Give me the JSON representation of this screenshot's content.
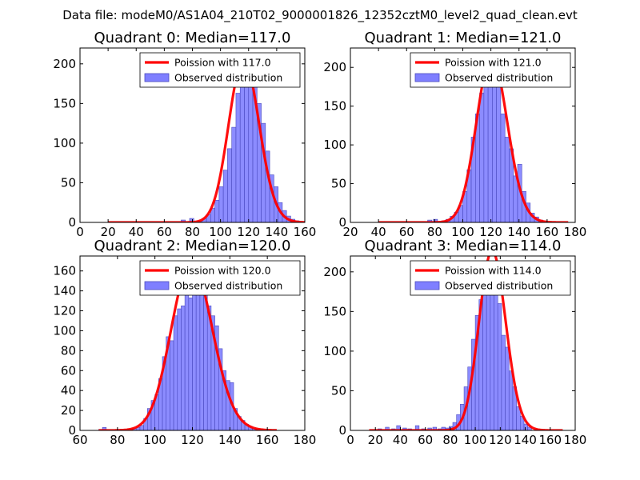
{
  "suptitle": "Data file: modeM0/AS1A04_210T02_9000001826_12352cztM0_level2_quad_clean.evt",
  "colors": {
    "poisson": "#ff0000",
    "bars": "#7f7fff",
    "bar_edge": "#4b4bbf",
    "axes": "#000000"
  },
  "chart_data": [
    {
      "type": "bar",
      "title": "Quadrant 0: Median=117.0",
      "median": 117.0,
      "xlim": [
        0,
        160
      ],
      "ylim": [
        0,
        220
      ],
      "xticks": [
        0,
        20,
        40,
        60,
        80,
        100,
        120,
        140,
        160
      ],
      "yticks": [
        0,
        50,
        100,
        150,
        200
      ],
      "legend": {
        "location": "top-right",
        "entries": [
          "Poission with 117.0",
          "Observed distribution"
        ]
      },
      "bin_width": 3,
      "bins": [
        [
          72,
          3
        ],
        [
          78,
          5
        ],
        [
          84,
          1
        ],
        [
          87,
          5
        ],
        [
          90,
          10
        ],
        [
          93,
          18
        ],
        [
          96,
          28
        ],
        [
          99,
          45
        ],
        [
          102,
          66
        ],
        [
          105,
          93
        ],
        [
          108,
          120
        ],
        [
          111,
          163
        ],
        [
          114,
          190
        ],
        [
          117,
          210
        ],
        [
          120,
          180
        ],
        [
          123,
          195
        ],
        [
          126,
          150
        ],
        [
          129,
          125
        ],
        [
          132,
          90
        ],
        [
          135,
          60
        ],
        [
          138,
          45
        ],
        [
          141,
          25
        ],
        [
          144,
          15
        ],
        [
          147,
          8
        ],
        [
          150,
          4
        ],
        [
          153,
          2
        ]
      ],
      "poisson": {
        "mu": 117.0,
        "x_range": [
          20,
          160
        ]
      }
    },
    {
      "type": "bar",
      "title": "Quadrant 1: Median=121.0",
      "median": 121.0,
      "xlim": [
        20,
        180
      ],
      "ylim": [
        0,
        225
      ],
      "xticks": [
        20,
        40,
        60,
        80,
        100,
        120,
        140,
        160,
        180
      ],
      "yticks": [
        0,
        50,
        100,
        150,
        200
      ],
      "legend": {
        "location": "top-right",
        "entries": [
          "Poission with 121.0",
          "Observed distribution"
        ]
      },
      "bin_width": 3,
      "bins": [
        [
          75,
          3
        ],
        [
          79,
          4
        ],
        [
          85,
          2
        ],
        [
          88,
          4
        ],
        [
          91,
          8
        ],
        [
          94,
          13
        ],
        [
          97,
          22
        ],
        [
          100,
          40
        ],
        [
          103,
          68
        ],
        [
          106,
          110
        ],
        [
          109,
          140
        ],
        [
          112,
          167
        ],
        [
          115,
          180
        ],
        [
          118,
          210
        ],
        [
          121,
          215
        ],
        [
          124,
          205
        ],
        [
          127,
          140
        ],
        [
          130,
          110
        ],
        [
          133,
          95
        ],
        [
          136,
          60
        ],
        [
          139,
          75
        ],
        [
          142,
          40
        ],
        [
          145,
          25
        ],
        [
          148,
          12
        ],
        [
          151,
          7
        ],
        [
          154,
          3
        ]
      ],
      "poisson": {
        "mu": 121.0,
        "x_range": [
          40,
          175
        ]
      }
    },
    {
      "type": "bar",
      "title": "Quadrant 2: Median=120.0",
      "median": 120.0,
      "xlim": [
        60,
        180
      ],
      "ylim": [
        0,
        175
      ],
      "xticks": [
        60,
        80,
        100,
        120,
        140,
        160,
        180
      ],
      "yticks": [
        0,
        20,
        40,
        60,
        80,
        100,
        120,
        140,
        160
      ],
      "legend": {
        "location": "top-right",
        "entries": [
          "Poission with 120.0",
          "Observed distribution"
        ]
      },
      "bin_width": 2,
      "bins": [
        [
          70,
          1
        ],
        [
          72,
          3
        ],
        [
          80,
          1
        ],
        [
          84,
          1
        ],
        [
          88,
          2
        ],
        [
          90,
          3
        ],
        [
          92,
          5
        ],
        [
          94,
          12
        ],
        [
          96,
          22
        ],
        [
          98,
          30
        ],
        [
          100,
          36
        ],
        [
          102,
          52
        ],
        [
          104,
          74
        ],
        [
          106,
          94
        ],
        [
          108,
          90
        ],
        [
          110,
          115
        ],
        [
          112,
          122
        ],
        [
          114,
          125
        ],
        [
          116,
          145
        ],
        [
          118,
          133
        ],
        [
          120,
          155
        ],
        [
          122,
          160
        ],
        [
          124,
          140
        ],
        [
          126,
          148
        ],
        [
          128,
          125
        ],
        [
          130,
          115
        ],
        [
          132,
          105
        ],
        [
          134,
          82
        ],
        [
          136,
          60
        ],
        [
          138,
          50
        ],
        [
          140,
          48
        ],
        [
          142,
          22
        ],
        [
          144,
          14
        ],
        [
          146,
          10
        ],
        [
          148,
          6
        ],
        [
          150,
          4
        ],
        [
          152,
          2
        ]
      ],
      "poisson": {
        "mu": 120.0,
        "x_range": [
          70,
          165
        ]
      }
    },
    {
      "type": "bar",
      "title": "Quadrant 3: Median=114.0",
      "median": 114.0,
      "xlim": [
        0,
        180
      ],
      "ylim": [
        0,
        220
      ],
      "xticks": [
        0,
        20,
        40,
        60,
        80,
        100,
        120,
        140,
        160,
        180
      ],
      "yticks": [
        0,
        50,
        100,
        150,
        200
      ],
      "legend": {
        "location": "top-right",
        "entries": [
          "Poission with 114.0",
          "Observed distribution"
        ]
      },
      "bin_width": 3,
      "bins": [
        [
          16,
          1
        ],
        [
          22,
          2
        ],
        [
          28,
          4
        ],
        [
          33,
          2
        ],
        [
          37,
          6
        ],
        [
          42,
          3
        ],
        [
          46,
          2
        ],
        [
          52,
          6
        ],
        [
          57,
          2
        ],
        [
          62,
          3
        ],
        [
          66,
          4
        ],
        [
          70,
          2
        ],
        [
          73,
          4
        ],
        [
          76,
          3
        ],
        [
          79,
          5
        ],
        [
          82,
          10
        ],
        [
          85,
          20
        ],
        [
          88,
          33
        ],
        [
          91,
          55
        ],
        [
          94,
          80
        ],
        [
          97,
          115
        ],
        [
          100,
          145
        ],
        [
          103,
          165
        ],
        [
          106,
          200
        ],
        [
          109,
          180
        ],
        [
          112,
          205
        ],
        [
          115,
          190
        ],
        [
          118,
          160
        ],
        [
          121,
          120
        ],
        [
          124,
          105
        ],
        [
          127,
          75
        ],
        [
          130,
          55
        ],
        [
          133,
          30
        ],
        [
          136,
          18
        ],
        [
          139,
          8
        ],
        [
          142,
          4
        ]
      ],
      "poisson": {
        "mu": 114.0,
        "x_range": [
          15,
          170
        ]
      }
    }
  ]
}
